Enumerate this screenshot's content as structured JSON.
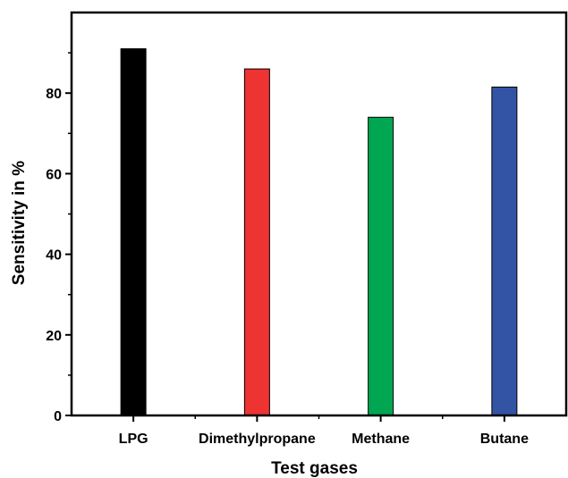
{
  "chart_data": {
    "type": "bar",
    "title": "",
    "xlabel": "Test gases",
    "ylabel": "Sensitivity in %",
    "categories": [
      "LPG",
      "Dimethylpropane",
      "Methane",
      "Butane"
    ],
    "values": [
      91,
      86,
      74,
      81.5
    ],
    "colors": [
      "#000000",
      "#ee3333",
      "#00a651",
      "#3353a4"
    ],
    "ylim": [
      0,
      100
    ],
    "yticks": [
      0,
      20,
      40,
      60,
      80
    ],
    "grid": false
  }
}
